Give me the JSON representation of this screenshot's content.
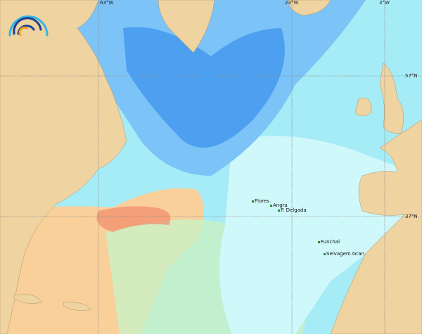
{
  "map": {
    "grid_labels": {
      "lon": [
        "63°W",
        "23°W",
        "3°W"
      ],
      "lat": [
        "57°N",
        "37°N"
      ]
    },
    "places": [
      {
        "name": "Flores"
      },
      {
        "name": "Angra"
      },
      {
        "name": "P. Delgada"
      },
      {
        "name": "Funchal"
      },
      {
        "name": "Selvagem Gran"
      }
    ],
    "colors": {
      "land": "#efd3a0",
      "deep_blue": "#4d9ff0",
      "mid_blue": "#7cc4f7",
      "light_blue": "#a6ecf6",
      "pale_cyan": "#cff8fb",
      "green": "#c9f1c5",
      "orange": "#f9cf9a",
      "red": "#f28a6a",
      "logo_dark": "#1f3f8f",
      "logo_light": "#2fb6e9",
      "logo_orange": "#f5a21b"
    }
  }
}
